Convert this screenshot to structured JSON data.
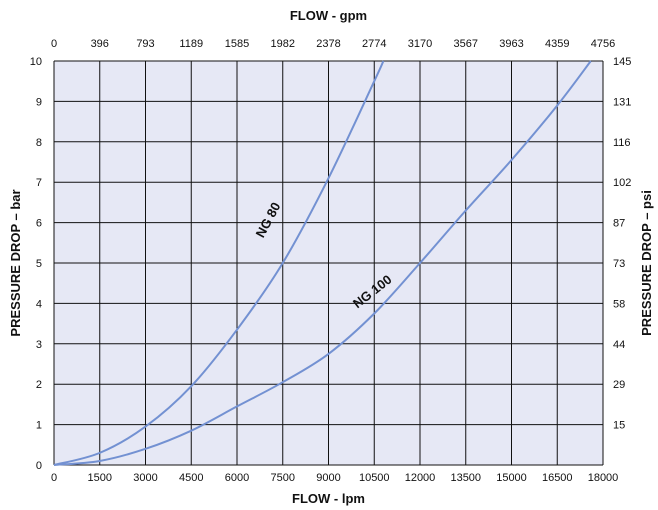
{
  "chart_data": {
    "type": "line",
    "title": "",
    "xlabel_bottom": "FLOW - lpm",
    "xlabel_top": "FLOW - gpm",
    "ylabel_left": "PRESSURE DROP – bar",
    "ylabel_right": "PRESSURE DROP – psi",
    "xlim": [
      0,
      18000
    ],
    "ylim": [
      0,
      10
    ],
    "grid": true,
    "x_ticks_bottom": [
      "0",
      "1500",
      "3000",
      "4500",
      "6000",
      "7500",
      "9000",
      "10500",
      "12000",
      "13500",
      "15000",
      "16500",
      "18000"
    ],
    "x_ticks_top": [
      "0",
      "396",
      "793",
      "1189",
      "1585",
      "1982",
      "2378",
      "2774",
      "3170",
      "3567",
      "3963",
      "4359",
      "4756"
    ],
    "y_ticks_left": [
      "0",
      "1",
      "2",
      "3",
      "4",
      "5",
      "6",
      "7",
      "8",
      "9",
      "10"
    ],
    "y_ticks_right": [
      "15",
      "29",
      "44",
      "58",
      "73",
      "87",
      "102",
      "116",
      "131",
      "145"
    ],
    "series": [
      {
        "name": "NG 80",
        "color": "#7391d2",
        "x": [
          0,
          1500,
          3000,
          4500,
          6000,
          7500,
          9000,
          10500,
          10800
        ],
        "y": [
          0,
          0.3,
          0.95,
          1.95,
          3.35,
          5.0,
          7.1,
          9.5,
          10.0
        ]
      },
      {
        "name": "NG 100",
        "color": "#7391d2",
        "x": [
          0,
          1500,
          3000,
          4500,
          6000,
          7500,
          9000,
          10500,
          12000,
          13500,
          15000,
          16500,
          17600
        ],
        "y": [
          0,
          0.1,
          0.4,
          0.85,
          1.45,
          2.05,
          2.75,
          3.75,
          5.0,
          6.3,
          7.55,
          8.9,
          10.0
        ]
      }
    ]
  },
  "colors": {
    "plot_background": "#e6e8f5",
    "grid": "#111111",
    "curve": "#7391d2"
  }
}
